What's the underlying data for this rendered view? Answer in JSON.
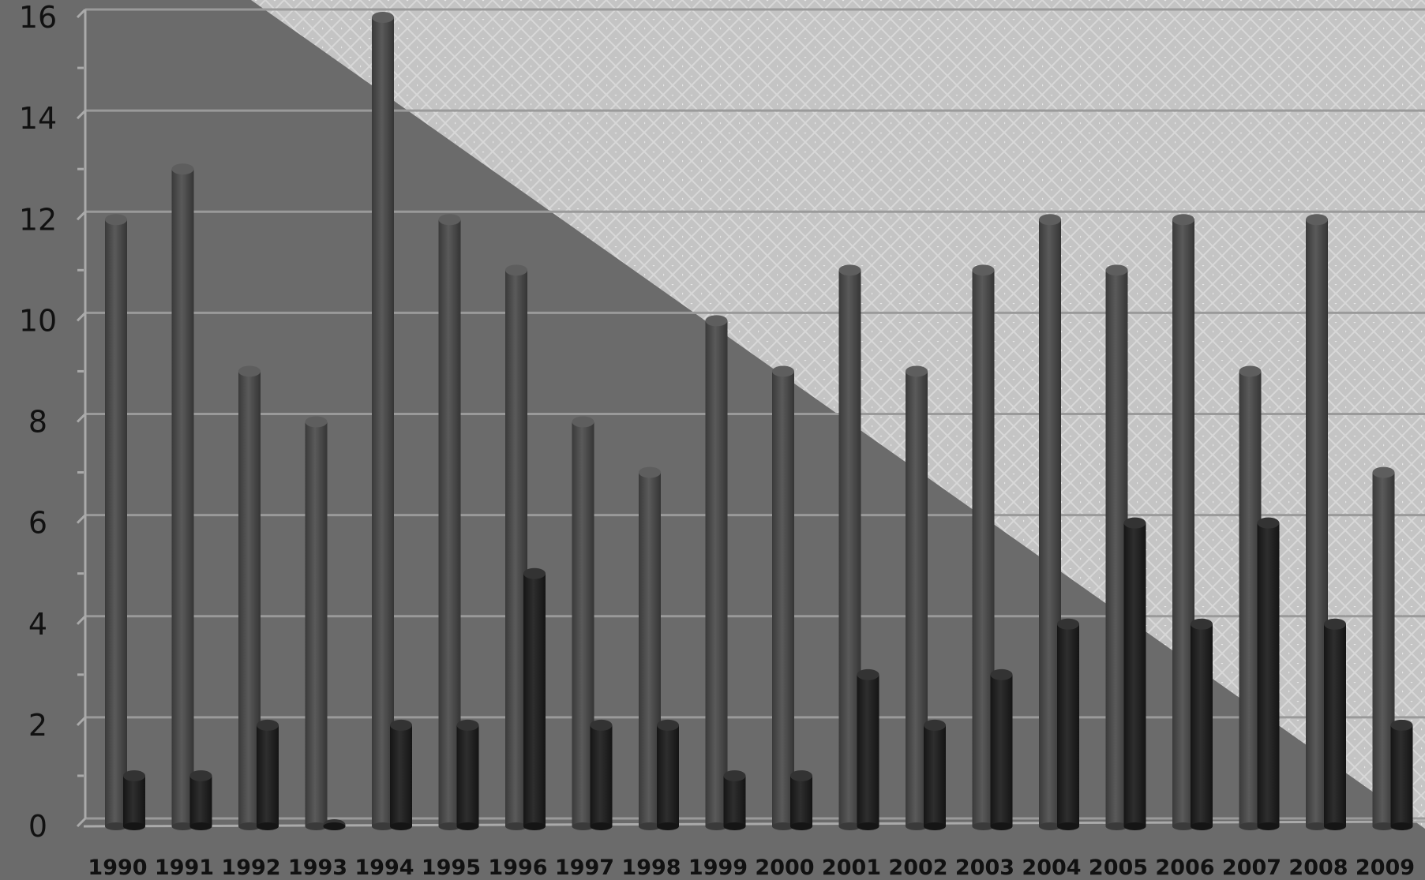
{
  "chart_data": {
    "type": "bar",
    "title": "",
    "xlabel": "",
    "ylabel": "",
    "categories": [
      "1990",
      "1991",
      "1992",
      "1993",
      "1994",
      "1995",
      "1996",
      "1997",
      "1998",
      "1999",
      "2000",
      "2001",
      "2002",
      "2003",
      "2004",
      "2005",
      "2006",
      "2007",
      "2008",
      "2009"
    ],
    "series": [
      {
        "values": [
          12,
          13,
          9,
          8,
          16,
          12,
          11,
          8,
          7,
          10,
          9,
          11,
          9,
          11,
          12,
          11,
          12,
          9,
          12,
          7
        ],
        "color": "#4d4d4d"
      },
      {
        "values": [
          1,
          1,
          2,
          0,
          2,
          2,
          5,
          2,
          2,
          1,
          1,
          3,
          2,
          3,
          4,
          6,
          4,
          6,
          4,
          2
        ],
        "color": "#232323"
      }
    ],
    "ylim": [
      0,
      16
    ],
    "yticks": [
      "0",
      "2",
      "4",
      "6",
      "8",
      "10",
      "12",
      "14",
      "16"
    ],
    "grid": true,
    "legend": "none",
    "colors": {
      "dark_background": "#6b6b6b",
      "light_background": "#c4c4c4",
      "gridline": "#9a9a9a"
    }
  }
}
